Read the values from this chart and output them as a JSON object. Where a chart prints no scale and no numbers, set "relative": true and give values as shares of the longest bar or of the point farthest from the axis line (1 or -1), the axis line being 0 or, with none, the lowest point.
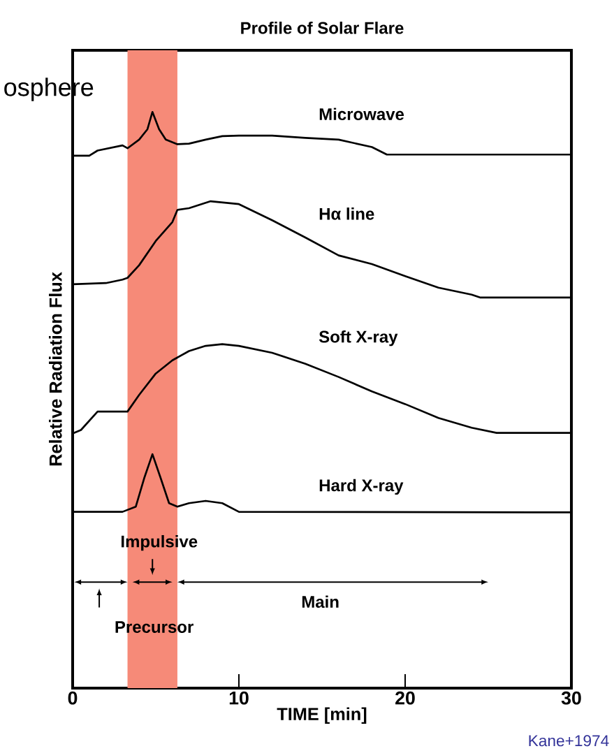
{
  "chart_data": {
    "type": "line",
    "title": "Profile of Solar Flare",
    "xlabel": "TIME  [min]",
    "ylabel": "Relative Radiation Flux",
    "relative": true,
    "xlim": [
      0,
      30
    ],
    "xticks": [
      0,
      10,
      20,
      30
    ],
    "series": [
      {
        "name": "Microwave",
        "color": "#000000",
        "x": [
          0,
          1,
          1.5,
          3,
          3.3,
          4,
          4.5,
          4.8,
          5.2,
          5.6,
          6.3,
          7,
          8,
          9,
          10,
          12,
          14,
          16,
          18,
          18.9,
          30
        ],
        "values": [
          0.924,
          0.924,
          0.933,
          0.942,
          0.937,
          0.952,
          0.97,
          1,
          0.97,
          0.952,
          0.944,
          0.945,
          0.952,
          0.958,
          0.959,
          0.959,
          0.955,
          0.952,
          0.939,
          0.926,
          0.926
        ]
      },
      {
        "name": "Hα line",
        "color": "#000000",
        "x": [
          0,
          2,
          3,
          3.3,
          4,
          5,
          6,
          6.3,
          7,
          8.3,
          10,
          12,
          14,
          16,
          18,
          20,
          22,
          24,
          24.5,
          30
        ],
        "values": [
          0.701,
          0.703,
          0.709,
          0.712,
          0.734,
          0.776,
          0.809,
          0.83,
          0.833,
          0.845,
          0.84,
          0.812,
          0.782,
          0.751,
          0.736,
          0.715,
          0.695,
          0.683,
          0.678,
          0.678
        ]
      },
      {
        "name": "Soft X-ray",
        "color": "#000000",
        "x": [
          0,
          0.5,
          1.5,
          2.5,
          3.3,
          4,
          5,
          6,
          7,
          8,
          9,
          10,
          12,
          14,
          16,
          18,
          20,
          22,
          24,
          25.5,
          30
        ],
        "values": [
          0.442,
          0.448,
          0.48,
          0.48,
          0.48,
          0.509,
          0.546,
          0.569,
          0.585,
          0.594,
          0.597,
          0.594,
          0.582,
          0.563,
          0.54,
          0.515,
          0.493,
          0.469,
          0.452,
          0.443,
          0.443
        ]
      },
      {
        "name": "Hard X-ray",
        "color": "#000000",
        "x": [
          0,
          3,
          3.8,
          4.3,
          4.8,
          5.3,
          5.8,
          6.3,
          7,
          8,
          9,
          10,
          30
        ],
        "values": [
          0.306,
          0.306,
          0.315,
          0.364,
          0.406,
          0.364,
          0.321,
          0.315,
          0.321,
          0.325,
          0.321,
          0.306,
          0.305
        ]
      }
    ],
    "bands": [
      {
        "axis": "x",
        "from": 3.3,
        "to": 6.3,
        "color": "#f68a78"
      }
    ],
    "annotations": [
      "Impulsive",
      "Precursor",
      "Main",
      "osphere",
      "Kane+1974"
    ]
  }
}
